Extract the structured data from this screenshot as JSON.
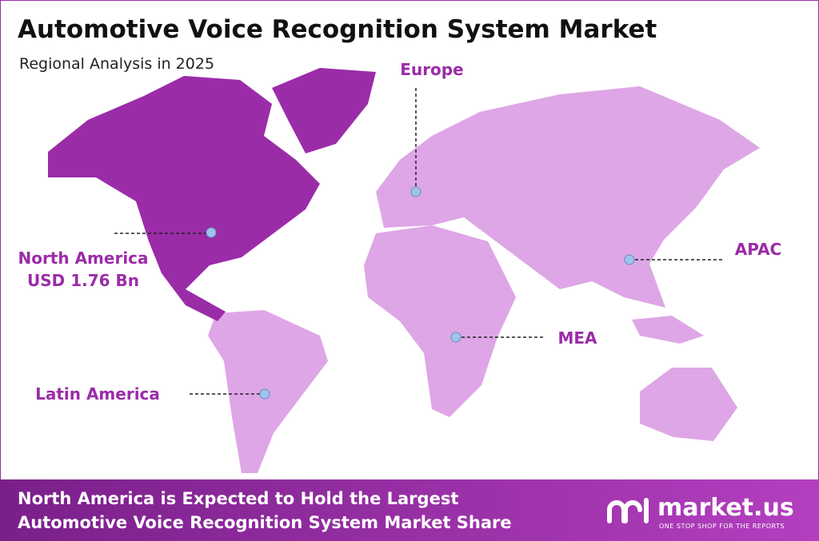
{
  "header": {
    "title": "Automotive Voice Recognition System Market",
    "subtitle": "Regional Analysis in 2025"
  },
  "regions": [
    {
      "name": "Europe"
    },
    {
      "name": "North America",
      "value": "USD 1.76 Bn"
    },
    {
      "name": "APAC"
    },
    {
      "name": "MEA"
    },
    {
      "name": "Latin America"
    }
  ],
  "footer": {
    "lines": [
      "North America is Expected to Hold the Largest",
      "Automotive Voice Recognition System Market Share"
    ]
  },
  "brand": {
    "name": "market.us",
    "tagline": "ONE STOP SHOP FOR THE REPORTS"
  }
}
